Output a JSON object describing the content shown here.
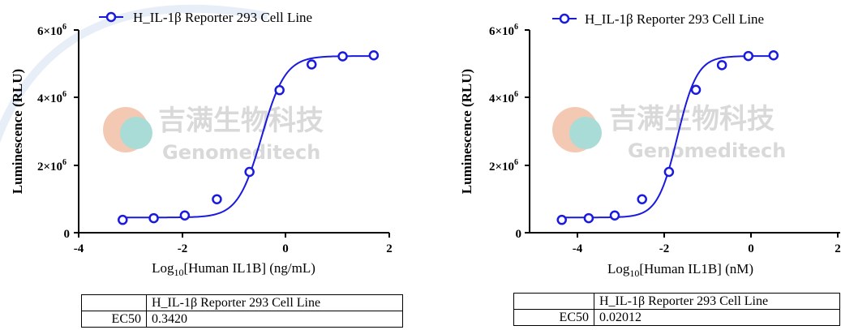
{
  "watermark": {
    "cn": "吉满生物科技",
    "en": "Genomeditech"
  },
  "colors": {
    "series": "#1a1adf",
    "watermark": "#d9d9d9",
    "logo_orange": "#f0b89a",
    "logo_teal": "#9fd6d0"
  },
  "charts": [
    {
      "ytick_labels": [
        {
          "base": "0",
          "exp": ""
        },
        {
          "base": "2×10",
          "exp": "6"
        },
        {
          "base": "4×10",
          "exp": "6"
        },
        {
          "base": "6×10",
          "exp": "6"
        }
      ],
      "xtick_labels": [
        "-4",
        "-2",
        "0",
        "2"
      ],
      "ylabel": "Luminescence (RLU)",
      "xlabel": {
        "pre": "Log",
        "sub": "10",
        "post": "[Human IL1B] (ng/mL)"
      },
      "legend": "H_IL-1β Reporter 293 Cell Line",
      "table": {
        "header": "H_IL-1β Reporter 293 Cell Line",
        "row_label": "EC50",
        "row_value": "0.3420"
      }
    },
    {
      "ytick_labels": [
        {
          "base": "0",
          "exp": ""
        },
        {
          "base": "2×10",
          "exp": "6"
        },
        {
          "base": "4×10",
          "exp": "6"
        },
        {
          "base": "6×10",
          "exp": "6"
        }
      ],
      "xtick_labels": [
        "-4",
        "-2",
        "0",
        "2"
      ],
      "ylabel": "Luminescence (RLU)",
      "xlabel": {
        "pre": "Log",
        "sub": "10",
        "post": "[Human IL1B] (nM)"
      },
      "legend": "H_IL-1β Reporter 293 Cell Line",
      "table": {
        "header": "H_IL-1β Reporter 293 Cell Line",
        "row_label": "EC50",
        "row_value": "0.02012"
      }
    }
  ],
  "chart_data": [
    {
      "type": "scatter",
      "xlim": [
        -4,
        2
      ],
      "ylim": [
        0,
        6000000
      ],
      "series": [
        {
          "name": "H_IL-1β Reporter 293 Cell Line",
          "x": [
            -3.15,
            -2.55,
            -1.95,
            -1.33,
            -0.7,
            -0.12,
            0.5,
            1.1,
            1.7
          ],
          "y": [
            380000,
            430000,
            510000,
            990000,
            1800000,
            4220000,
            4980000,
            5220000,
            5250000
          ]
        }
      ],
      "fit": {
        "bottom": 450000,
        "top": 5230000,
        "log_ec50": -0.466,
        "hill": 1.9
      },
      "grid": false
    },
    {
      "type": "scatter",
      "xlim": [
        -4.5,
        2
      ],
      "ylim": [
        0,
        6000000
      ],
      "series": [
        {
          "name": "H_IL-1β Reporter 293 Cell Line",
          "x": [
            -4.36,
            -3.74,
            -3.14,
            -2.51,
            -1.89,
            -1.27,
            -0.67,
            -0.06,
            0.52
          ],
          "y": [
            380000,
            430000,
            510000,
            990000,
            1800000,
            4230000,
            4960000,
            5230000,
            5250000
          ]
        }
      ],
      "fit": {
        "bottom": 450000,
        "top": 5230000,
        "log_ec50": -1.696,
        "hill": 1.9
      },
      "grid": false
    }
  ]
}
